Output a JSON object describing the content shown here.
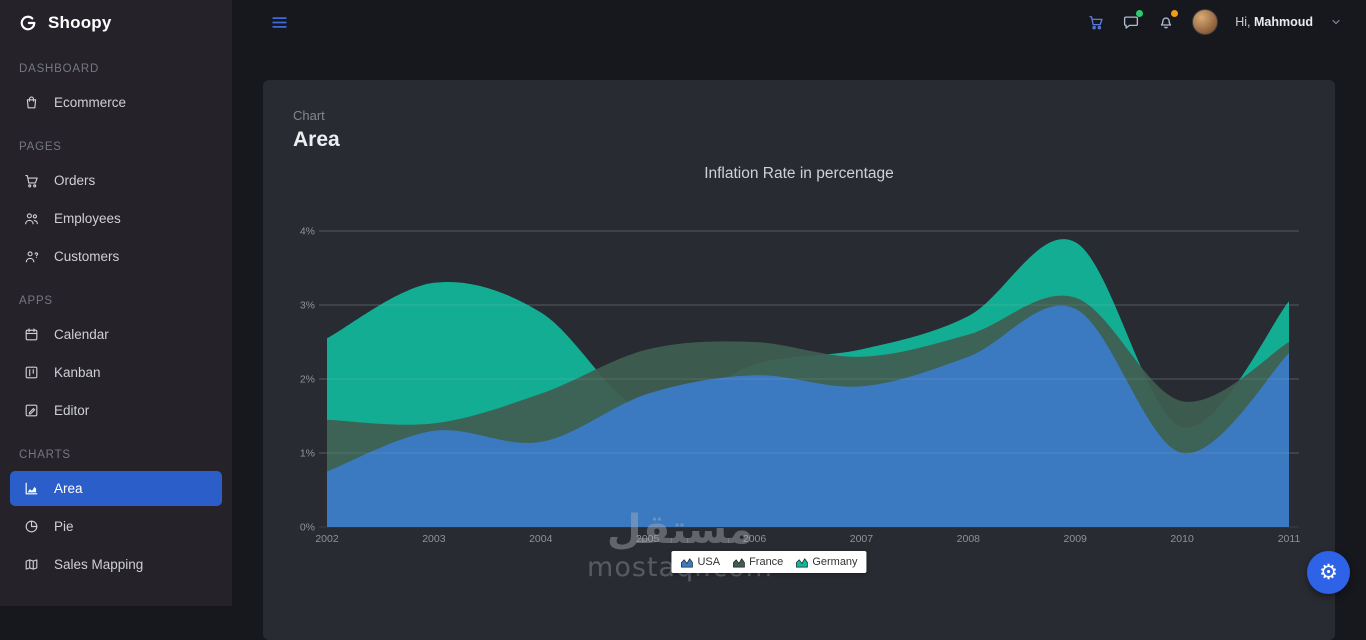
{
  "app": {
    "name": "Shoopy"
  },
  "topbar": {
    "greeting_prefix": "Hi,",
    "username": "Mahmoud"
  },
  "sidebar": {
    "sections": [
      {
        "label": "DASHBOARD",
        "items": [
          {
            "label": "Ecommerce",
            "icon": "bag-icon",
            "active": false
          }
        ]
      },
      {
        "label": "PAGES",
        "items": [
          {
            "label": "Orders",
            "icon": "cart-icon",
            "active": false
          },
          {
            "label": "Employees",
            "icon": "users-icon",
            "active": false
          },
          {
            "label": "Customers",
            "icon": "user-question-icon",
            "active": false
          }
        ]
      },
      {
        "label": "APPS",
        "items": [
          {
            "label": "Calendar",
            "icon": "calendar-icon",
            "active": false
          },
          {
            "label": "Kanban",
            "icon": "kanban-icon",
            "active": false
          },
          {
            "label": "Editor",
            "icon": "editor-icon",
            "active": false
          }
        ]
      },
      {
        "label": "CHARTS",
        "items": [
          {
            "label": "Area",
            "icon": "area-chart-icon",
            "active": true
          },
          {
            "label": "Pie",
            "icon": "pie-chart-icon",
            "active": false
          },
          {
            "label": "Sales Mapping",
            "icon": "map-icon",
            "active": false
          }
        ]
      }
    ]
  },
  "card": {
    "subtitle": "Chart",
    "title": "Area"
  },
  "chart_data": {
    "type": "area",
    "title": "Inflation Rate in percentage",
    "categories": [
      "2002",
      "2003",
      "2004",
      "2005",
      "2006",
      "2007",
      "2008",
      "2009",
      "2010",
      "2011"
    ],
    "series": [
      {
        "name": "USA",
        "color": "#3b7cc9",
        "values": [
          0.75,
          1.3,
          1.15,
          1.8,
          2.05,
          1.9,
          2.3,
          2.95,
          1.0,
          2.35
        ]
      },
      {
        "name": "France",
        "color": "#3f5e51",
        "values": [
          1.45,
          1.4,
          1.8,
          2.4,
          2.5,
          2.3,
          2.6,
          3.1,
          1.7,
          2.5
        ]
      },
      {
        "name": "Germany",
        "color": "#12b79b",
        "values": [
          2.55,
          3.3,
          2.9,
          1.55,
          2.2,
          2.4,
          2.85,
          3.85,
          1.35,
          3.05
        ]
      }
    ],
    "ylim": [
      0,
      4
    ],
    "yticks": [
      "0%",
      "1%",
      "2%",
      "3%",
      "4%"
    ],
    "xlabel": "",
    "ylabel": "",
    "grid": true,
    "legend_position": "bottom"
  },
  "watermark": {
    "arabic": "مستقل",
    "latin": "mostaql.com"
  },
  "colors": {
    "page_bg": "#17181d",
    "sidebar_bg": "#25222a",
    "card_bg": "#282b32",
    "accent": "#2c5ec9",
    "dot_green": "#2ecc71",
    "dot_orange": "#f39c12",
    "fab": "#2e63e7"
  }
}
